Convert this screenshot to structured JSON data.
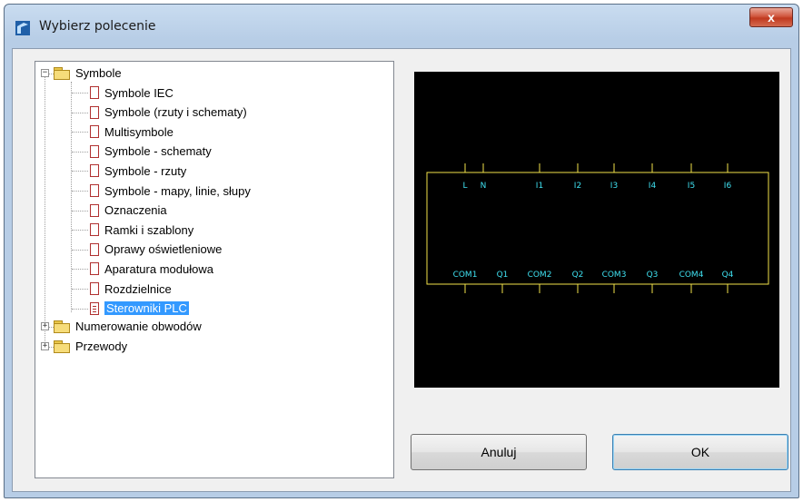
{
  "window": {
    "title": "Wybierz polecenie",
    "close_label": "x"
  },
  "tree": {
    "root": {
      "label": "Symbole",
      "expander": "−",
      "children": [
        "Symbole IEC",
        "Symbole (rzuty i schematy)",
        "Multisymbole",
        "Symbole - schematy",
        "Symbole - rzuty",
        "Symbole - mapy, linie, słupy",
        "Oznaczenia",
        "Ramki i szablony",
        "Oprawy oświetleniowe",
        "Aparatura modułowa",
        "Rozdzielnice",
        "Sterowniki PLC"
      ],
      "selected": "Sterowniki PLC"
    },
    "collapsed_folders": [
      {
        "label": "Numerowanie obwodów",
        "expander": "+"
      },
      {
        "label": "Przewody",
        "expander": "+"
      }
    ]
  },
  "preview": {
    "top_labels": [
      "L",
      "N",
      "I1",
      "I2",
      "I3",
      "I4",
      "I5",
      "I6"
    ],
    "bottom_labels": [
      "COM1",
      "Q1",
      "COM2",
      "Q2",
      "COM3",
      "Q3",
      "COM4",
      "Q4"
    ],
    "colors": {
      "outline": "#f2e24a",
      "text": "#3fe0f0",
      "background": "#000000"
    }
  },
  "buttons": {
    "cancel": "Anuluj",
    "ok": "OK"
  }
}
